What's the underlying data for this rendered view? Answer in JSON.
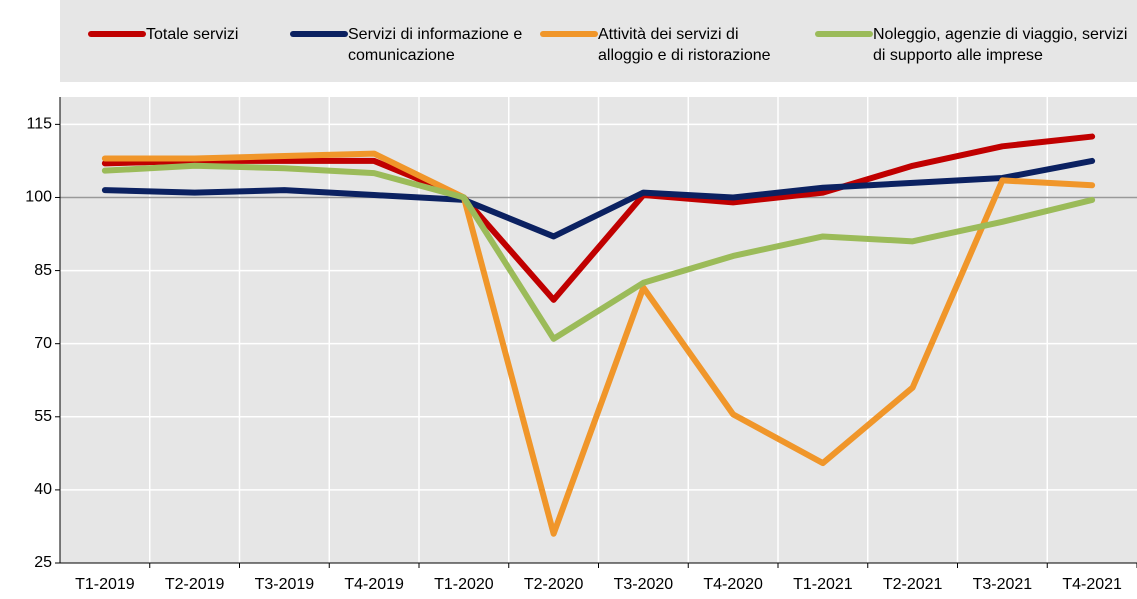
{
  "chart_data": {
    "type": "line",
    "categories": [
      "T1-2019",
      "T2-2019",
      "T3-2019",
      "T4-2019",
      "T1-2020",
      "T2-2020",
      "T3-2020",
      "T4-2020",
      "T1-2021",
      "T2-2021",
      "T3-2021",
      "T4-2021"
    ],
    "series": [
      {
        "name": "Totale servizi",
        "color": "#c00000",
        "values": [
          107,
          107.5,
          107.5,
          107.5,
          100,
          79,
          100.5,
          99,
          101,
          106.5,
          110.5,
          112.5
        ]
      },
      {
        "name": "Servizi di informazione e comunicazione",
        "color": "#0b2161",
        "values": [
          101.5,
          101,
          101.5,
          100.5,
          99.5,
          92,
          101,
          100,
          102,
          103,
          104,
          107.5
        ]
      },
      {
        "name": "Attività dei servizi di alloggio e di ristorazione",
        "color": "#f0962a",
        "values": [
          108,
          108,
          108.5,
          109,
          100,
          31,
          81.5,
          55.5,
          45.5,
          61,
          103.5,
          102.5
        ]
      },
      {
        "name": "Noleggio, agenzie di viaggio, servizi di supporto alle imprese",
        "color": "#9bbb59",
        "values": [
          105.5,
          106.5,
          106,
          105,
          100,
          71,
          82.5,
          88,
          92,
          91,
          95,
          99.5
        ]
      }
    ],
    "ylim": [
      25,
      120
    ],
    "yticks": [
      25,
      40,
      55,
      70,
      85,
      100,
      115
    ],
    "grid": true
  }
}
